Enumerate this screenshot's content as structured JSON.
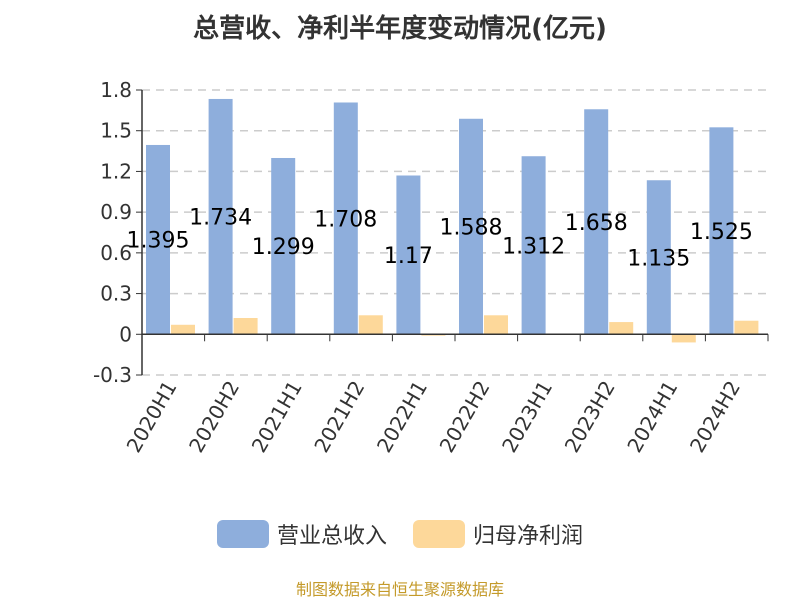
{
  "chart_data": {
    "type": "bar",
    "title": "总营收、净利半年度变动情况(亿元)",
    "categories": [
      "2020H1",
      "2020H2",
      "2021H1",
      "2021H2",
      "2022H1",
      "2022H2",
      "2023H1",
      "2023H2",
      "2024H1",
      "2024H2"
    ],
    "series": [
      {
        "name": "营业总收入",
        "color": "#8eaedc",
        "values": [
          1.395,
          1.734,
          1.299,
          1.708,
          1.17,
          1.588,
          1.312,
          1.658,
          1.135,
          1.525
        ],
        "labels": [
          "1.395",
          "1.734",
          "1.299",
          "1.708",
          "1.17",
          "1.588",
          "1.312",
          "1.658",
          "1.135",
          "1.525"
        ]
      },
      {
        "name": "归母净利润",
        "color": "#fdd89a",
        "values": [
          0.07,
          0.12,
          0.005,
          0.14,
          -0.01,
          0.14,
          0.005,
          0.09,
          -0.06,
          0.1
        ]
      }
    ],
    "ylim": [
      -0.3,
      1.8
    ],
    "yticks": [
      "1.8",
      "1.5",
      "1.2",
      "0.9",
      "0.6",
      "0.3",
      "0",
      "-0.3"
    ],
    "grid": true,
    "legend_position": "bottom"
  },
  "source_note": "制图数据来自恒生聚源数据库"
}
